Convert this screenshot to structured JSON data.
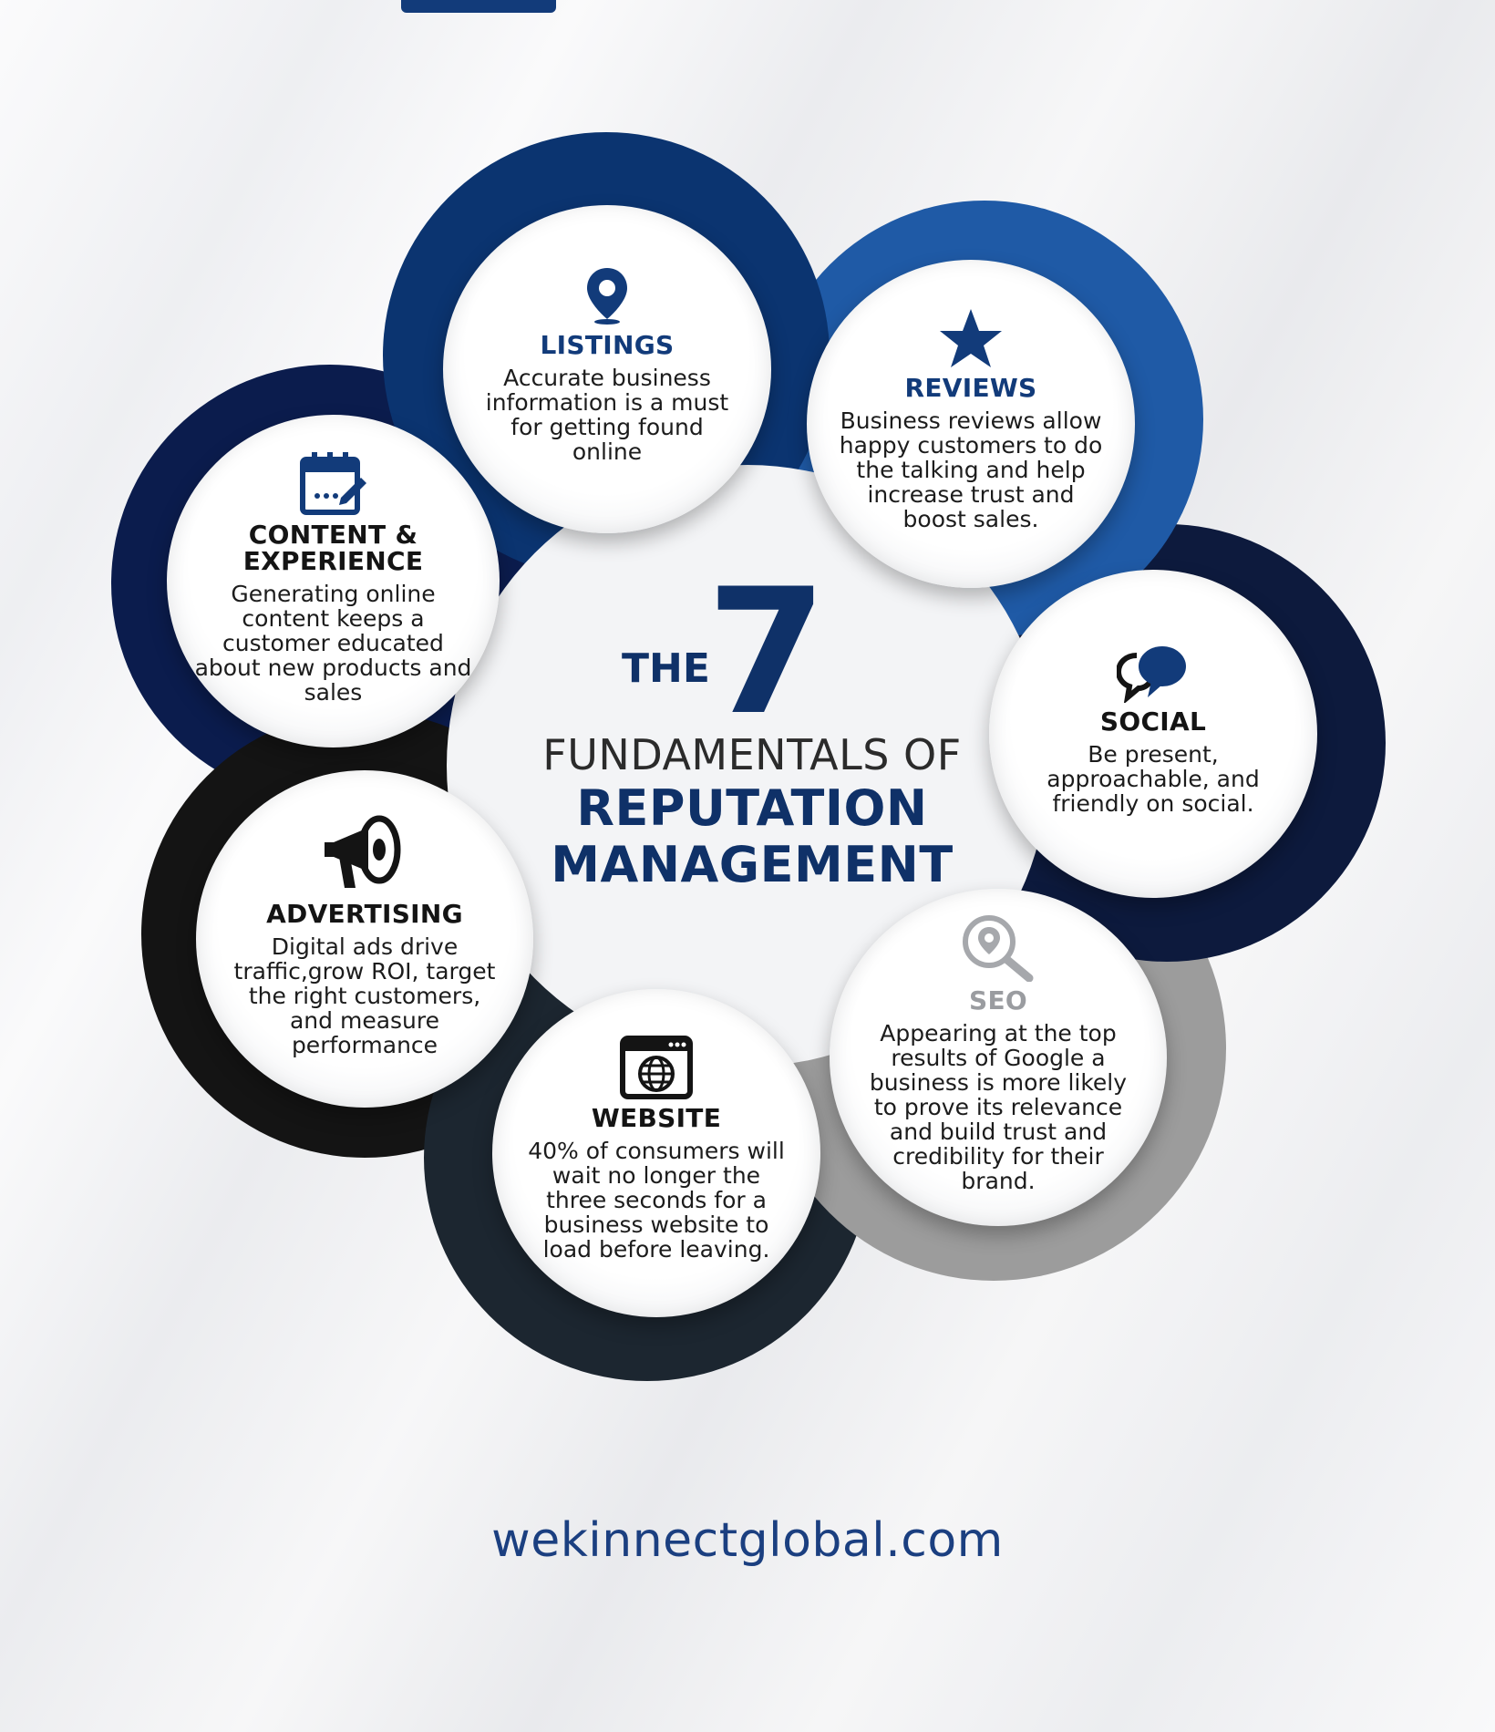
{
  "colors": {
    "listings_ring": "#0b3470",
    "reviews_ring": "#1f5aa6",
    "social_ring": "#0d1a3d",
    "seo_ring": "#9c9c9c",
    "website_ring": "#1c2630",
    "advertising_ring": "#141414",
    "content_ring": "#0b1c4d",
    "brand_blue": "#123b7a"
  },
  "center": {
    "the": "THE",
    "number": "7",
    "line1": "FUNDAMENTALS OF",
    "line2": "REPUTATION",
    "line3": "MANAGEMENT"
  },
  "fundamentals": {
    "listings": {
      "icon": "location-pin-icon",
      "title": "LISTINGS",
      "text": "Accurate business information is a must for getting found online"
    },
    "reviews": {
      "icon": "star-icon",
      "title": "REVIEWS",
      "text": "Business reviews allow happy customers to do the talking and help increase trust and boost sales."
    },
    "social": {
      "icon": "chat-bubbles-icon",
      "title": "SOCIAL",
      "text": "Be present, approachable, and friendly on social."
    },
    "seo": {
      "icon": "magnifier-pin-icon",
      "title": "SEO",
      "text": "Appearing at the top results of Google a business  is more likely to prove its relevance and build trust and credibility for their brand."
    },
    "website": {
      "icon": "browser-globe-icon",
      "title": "WEBSITE",
      "text": "40% of consumers will wait no longer the three seconds for a business website to load before leaving."
    },
    "advertising": {
      "icon": "megaphone-icon",
      "title": "ADVERTISING",
      "text": "Digital ads drive traffic,grow ROI, target the right customers, and measure performance"
    },
    "content": {
      "icon": "calendar-edit-icon",
      "title": "CONTENT & EXPERIENCE",
      "text": "Generating online content keeps a customer educated about new products and sales"
    }
  },
  "footer": {
    "url": "wekinnectglobal.com"
  }
}
